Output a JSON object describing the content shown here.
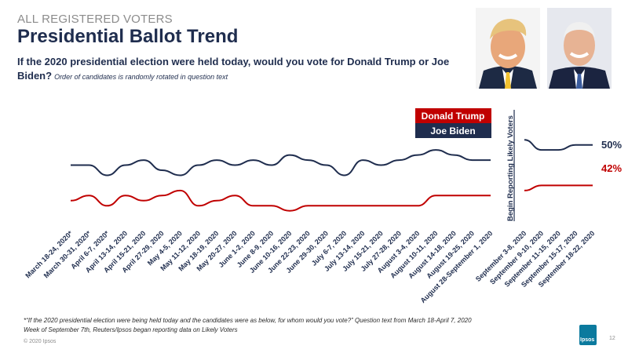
{
  "header": {
    "kicker": "ALL REGISTERED VOTERS",
    "title": "Presidential Ballot Trend",
    "question": "If the 2020 presidential election were held today, would you vote for Donald Trump or Joe Biden?",
    "question_note": "Order of candidates is randomly rotated in question text"
  },
  "footer": {
    "footnote_line1": "*“If the 2020 presidential election were being held today and the candidates were as below, for whom would you vote?” Question text from March 18-April 7, 2020",
    "footnote_line2": "Week of September 7th, Reuters/Ipsos began reporting data on Likely Voters",
    "copyright": "© 2020 Ipsos",
    "page_number": "12",
    "logo_text": "Ipsos"
  },
  "chart_data": {
    "type": "line",
    "divider_label": "Begin Reporting Likely Voters",
    "ylim": [
      30,
      60
    ],
    "colors": {
      "Donald Trump": "#c00000",
      "Joe Biden": "#1f2d4e"
    },
    "legend": [
      "Donald Trump",
      "Joe Biden"
    ],
    "end_labels": {
      "Joe Biden": "50%",
      "Donald Trump": "42%"
    },
    "segments": [
      {
        "categories": [
          "March 18-24, 2020*",
          "March 30-31, 2020*",
          "April 6-7, 2020*",
          "April 13-14, 2020",
          "April 15-21, 2020",
          "April 27-29, 2020",
          "May 4-5, 2020",
          "May 11-12, 2020",
          "May 18-19, 2020",
          "May 20-27, 2020",
          "June 1-2, 2020",
          "June 8-9, 2020",
          "June 10-16, 2020",
          "June 22-23, 2020",
          "June 29-30, 2020",
          "July 6-7, 2020",
          "July 13-14, 2020",
          "July 15-21, 2020",
          "July 27-28, 2020",
          "August 3-4, 2020",
          "August 10-11, 2020",
          "August 14-18, 2020",
          "August 19-25, 2020",
          "August 28-September 1, 2020"
        ],
        "series": [
          {
            "name": "Joe Biden",
            "values": [
              46,
              46,
              44,
              46,
              47,
              45,
              44,
              46,
              47,
              46,
              47,
              46,
              48,
              47,
              46,
              44,
              47,
              46,
              47,
              48,
              49,
              48,
              47,
              47
            ]
          },
          {
            "name": "Donald Trump",
            "values": [
              39,
              40,
              38,
              40,
              39,
              40,
              41,
              38,
              39,
              40,
              38,
              38,
              37,
              38,
              38,
              38,
              38,
              38,
              38,
              38,
              40,
              40,
              40,
              40
            ]
          }
        ]
      },
      {
        "categories": [
          "September 3-8, 2020",
          "September 9-10, 2020",
          "September 11-15, 2020",
          "September 15-17, 2020",
          "September 18-22, 2020"
        ],
        "series": [
          {
            "name": "Joe Biden",
            "values": [
              51,
              49,
              49,
              50,
              50
            ]
          },
          {
            "name": "Donald Trump",
            "values": [
              41,
              42,
              42,
              42,
              42
            ]
          }
        ]
      }
    ]
  }
}
